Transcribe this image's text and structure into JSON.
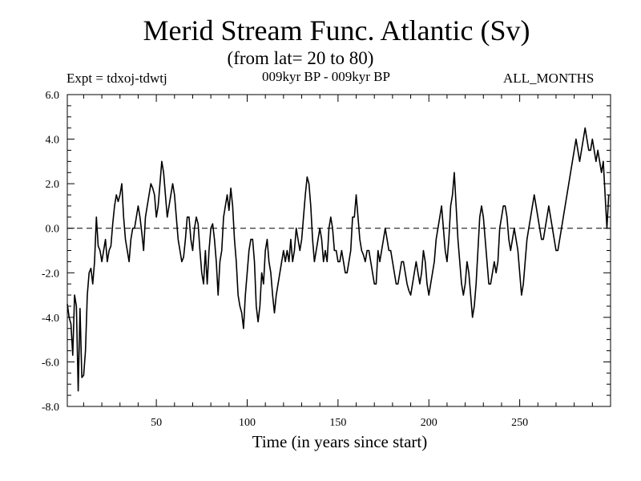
{
  "header": {
    "title": "Merid Stream Func. Atlantic (Sv)",
    "subtitle": "(from lat= 20 to 80)",
    "expt": "Expt = tdxoj-tdwtj",
    "period": "009kyr BP - 009kyr BP",
    "months": "ALL_MONTHS"
  },
  "chart_data": {
    "type": "line",
    "xlabel": "Time (in years since start)",
    "ylabel": "",
    "xlim": [
      1,
      300
    ],
    "ylim": [
      -8.0,
      6.0
    ],
    "xticks": [
      50,
      100,
      150,
      200,
      250
    ],
    "xtick_labels": [
      "50",
      "100",
      "150",
      "200",
      "250"
    ],
    "yticks": [
      -8,
      -6,
      -4,
      -2,
      0,
      2,
      4,
      6
    ],
    "ytick_labels": [
      "-8.0",
      "-6.0",
      "-4.0",
      "-2.0",
      "0.0",
      "2.0",
      "4.0",
      "6.0"
    ],
    "reference_line": {
      "y": 0,
      "style": "dashed"
    },
    "grid": false,
    "series": [
      {
        "color": "#000000",
        "x_start": 1,
        "x_step": 1,
        "y": [
          -3.4,
          -4.0,
          -4.3,
          -5.7,
          -3.0,
          -3.5,
          -7.3,
          -3.6,
          -6.7,
          -6.6,
          -5.5,
          -3.0,
          -2.0,
          -1.8,
          -2.5,
          -1.5,
          0.5,
          -0.8,
          -1.0,
          -1.5,
          -1.0,
          -0.5,
          -1.5,
          -1.0,
          -0.8,
          0.2,
          1.0,
          1.5,
          1.2,
          1.5,
          2.0,
          0.5,
          -0.5,
          -1.0,
          -1.5,
          -0.5,
          0.0,
          0.0,
          0.5,
          1.0,
          0.5,
          -0.2,
          -1.0,
          0.5,
          1.0,
          1.5,
          2.0,
          1.8,
          1.5,
          0.5,
          1.0,
          2.0,
          3.0,
          2.5,
          1.5,
          0.5,
          1.0,
          1.5,
          2.0,
          1.5,
          0.5,
          -0.5,
          -1.0,
          -1.5,
          -1.3,
          -0.5,
          0.5,
          0.5,
          -0.5,
          -1.0,
          0.0,
          0.5,
          0.2,
          -1.0,
          -2.0,
          -2.5,
          -1.0,
          -2.5,
          -1.0,
          0.0,
          0.2,
          -0.5,
          -1.5,
          -3.0,
          -1.5,
          -1.0,
          0.5,
          1.0,
          1.5,
          0.8,
          1.8,
          1.0,
          -0.5,
          -1.5,
          -3.0,
          -3.5,
          -3.8,
          -4.5,
          -3.0,
          -2.0,
          -1.0,
          -0.5,
          -0.5,
          -1.5,
          -3.5,
          -4.2,
          -3.5,
          -2.0,
          -2.5,
          -1.0,
          -0.5,
          -1.5,
          -2.0,
          -3.0,
          -3.8,
          -3.0,
          -2.5,
          -2.0,
          -1.5,
          -1.0,
          -1.5,
          -1.0,
          -1.5,
          -0.5,
          -1.5,
          -1.0,
          0.0,
          -0.5,
          -1.0,
          -0.5,
          0.5,
          1.5,
          2.3,
          2.0,
          1.0,
          -0.5,
          -1.5,
          -1.0,
          -0.5,
          0.0,
          -0.5,
          -1.5,
          -1.0,
          -1.5,
          0.0,
          0.5,
          0.0,
          -1.0,
          -1.0,
          -1.5,
          -1.5,
          -1.0,
          -1.5,
          -2.0,
          -2.0,
          -1.5,
          -1.0,
          0.5,
          0.5,
          1.5,
          0.5,
          -0.5,
          -1.0,
          -1.2,
          -1.5,
          -1.0,
          -1.0,
          -1.5,
          -2.0,
          -2.5,
          -2.5,
          -1.0,
          -1.5,
          -1.0,
          -0.5,
          0.0,
          -0.5,
          -1.0,
          -1.0,
          -1.5,
          -2.0,
          -2.5,
          -2.5,
          -2.0,
          -1.5,
          -1.5,
          -2.0,
          -2.5,
          -2.8,
          -3.0,
          -2.5,
          -2.0,
          -1.5,
          -2.0,
          -2.5,
          -2.0,
          -1.0,
          -1.5,
          -2.5,
          -3.0,
          -2.5,
          -2.0,
          -1.5,
          -0.5,
          0.0,
          0.5,
          1.0,
          0.0,
          -1.0,
          -1.5,
          -0.5,
          1.0,
          1.5,
          2.5,
          1.0,
          -0.5,
          -1.5,
          -2.5,
          -3.0,
          -2.5,
          -1.5,
          -2.0,
          -3.0,
          -4.0,
          -3.5,
          -2.5,
          -1.0,
          0.5,
          1.0,
          0.5,
          -0.5,
          -1.5,
          -2.5,
          -2.5,
          -2.0,
          -1.5,
          -2.0,
          -1.5,
          0.0,
          0.5,
          1.0,
          1.0,
          0.5,
          -0.5,
          -1.0,
          -0.5,
          0.0,
          -0.5,
          -1.0,
          -2.0,
          -3.0,
          -2.5,
          -1.5,
          -0.5,
          0.0,
          0.5,
          1.0,
          1.5,
          1.0,
          0.5,
          0.0,
          -0.5,
          -0.5,
          0.0,
          0.5,
          1.0,
          0.5,
          0.0,
          -0.5,
          -1.0,
          -1.0,
          -0.5,
          0.0,
          0.5,
          1.0,
          1.5,
          2.0,
          2.5,
          3.0,
          3.5,
          4.0,
          3.5,
          3.0,
          3.5,
          4.0,
          4.5,
          4.0,
          3.5,
          3.5,
          4.0,
          3.5,
          3.0,
          3.5,
          3.0,
          2.5,
          3.0,
          1.5,
          0.0,
          1.5
        ]
      }
    ]
  }
}
